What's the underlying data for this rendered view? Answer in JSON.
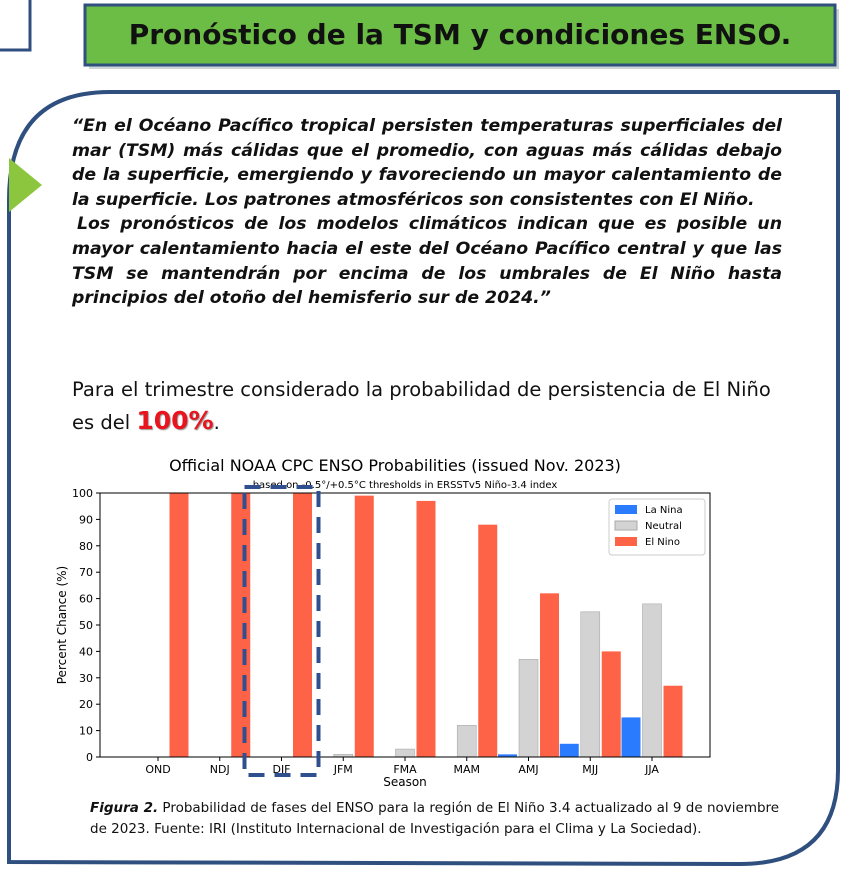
{
  "header": {
    "title": "Pronóstico de la TSM y condiciones ENSO."
  },
  "body": {
    "quote_paragraphs": [
      "“En el Océano Pacífico tropical persisten temperaturas superficiales del mar (TSM) más cálidas que el promedio, con aguas más cálidas debajo de la superficie, emergiendo y favoreciendo un mayor calentamiento de la superficie. Los patrones atmosféricos son consistentes con El Niño.",
      "Los pronósticos de los modelos climáticos indican que es posible un mayor calentamiento hacia el este del Océano Pacífico central y que las TSM se mantendrán por encima de los umbrales de El Niño hasta principios del otoño del hemisferio sur de 2024.”"
    ],
    "statement": "Para el trimestre considerado la probabilidad de persistencia de El Niño es del",
    "highlight": "100%",
    "statement_end": "."
  },
  "chart_data": {
    "type": "bar",
    "title": "Official NOAA CPC ENSO Probabilities (issued Nov. 2023)",
    "subtitle": "based on -0.5°/+0.5°C thresholds in ERSSTv5 Niño-3.4 index",
    "x_label": "Season",
    "y_label": "Percent Chance (%)",
    "categories": [
      "OND",
      "NDJ",
      "DJF",
      "JFM",
      "FMA",
      "MAM",
      "AMJ",
      "MJJ",
      "JJA"
    ],
    "series": [
      {
        "name": "La Nina",
        "color": "#2b7bff",
        "values": [
          0,
          0,
          0,
          0,
          0,
          0,
          1,
          5,
          15
        ]
      },
      {
        "name": "Neutral",
        "color": "#d3d3d3",
        "values": [
          0,
          0,
          0,
          1,
          3,
          12,
          37,
          55,
          58
        ]
      },
      {
        "name": "El Nino",
        "color": "#ff6347",
        "values": [
          100,
          100,
          100,
          99,
          97,
          88,
          62,
          40,
          27
        ]
      }
    ],
    "ylim": [
      0,
      100
    ],
    "yticks": [
      0,
      10,
      20,
      30,
      40,
      50,
      60,
      70,
      80,
      90,
      100
    ],
    "legend": "upper right"
  },
  "caption": {
    "label": "Figura 2.",
    "text": "Probabilidad de fases del ENSO para la región de El Niño 3.4 actualizado al 9 de noviembre de 2023. Fuente: IRI (Instituto Internacional de Investigación para el Clima y La Sociedad)."
  }
}
